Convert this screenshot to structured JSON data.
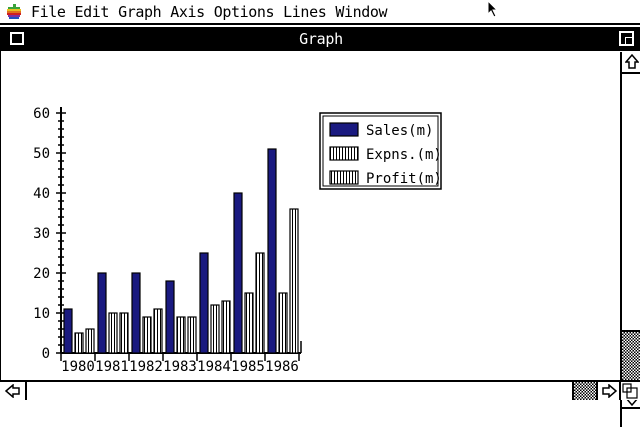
{
  "menubar": {
    "items": [
      "File",
      "Edit",
      "Graph",
      "Axis",
      "Options",
      "Lines",
      "Window"
    ]
  },
  "window": {
    "title": "Graph"
  },
  "chart_data": {
    "type": "bar",
    "categories": [
      "1980",
      "1981",
      "1982",
      "1983",
      "1984",
      "1985",
      "1986"
    ],
    "series": [
      {
        "name": "Sales(m)",
        "values": [
          11,
          20,
          20,
          18,
          25,
          40,
          51
        ],
        "color": "#1a1a80",
        "pattern": "solid"
      },
      {
        "name": "Expns.(m)",
        "values": [
          5,
          10,
          9,
          9,
          12,
          15,
          15
        ],
        "color": "#ffffff",
        "pattern": "fine-vertical-stripes"
      },
      {
        "name": "Profit(m)",
        "values": [
          6,
          10,
          11,
          9,
          13,
          25,
          36
        ],
        "color": "#ffffff",
        "pattern": "vertical-stripes"
      }
    ],
    "yticks": [
      "0",
      "10",
      "20",
      "30",
      "40",
      "50",
      "60"
    ],
    "ylim": [
      0,
      60
    ],
    "grid": false,
    "legend_position": "top-right",
    "title": "",
    "xlabel": "",
    "ylabel": ""
  }
}
